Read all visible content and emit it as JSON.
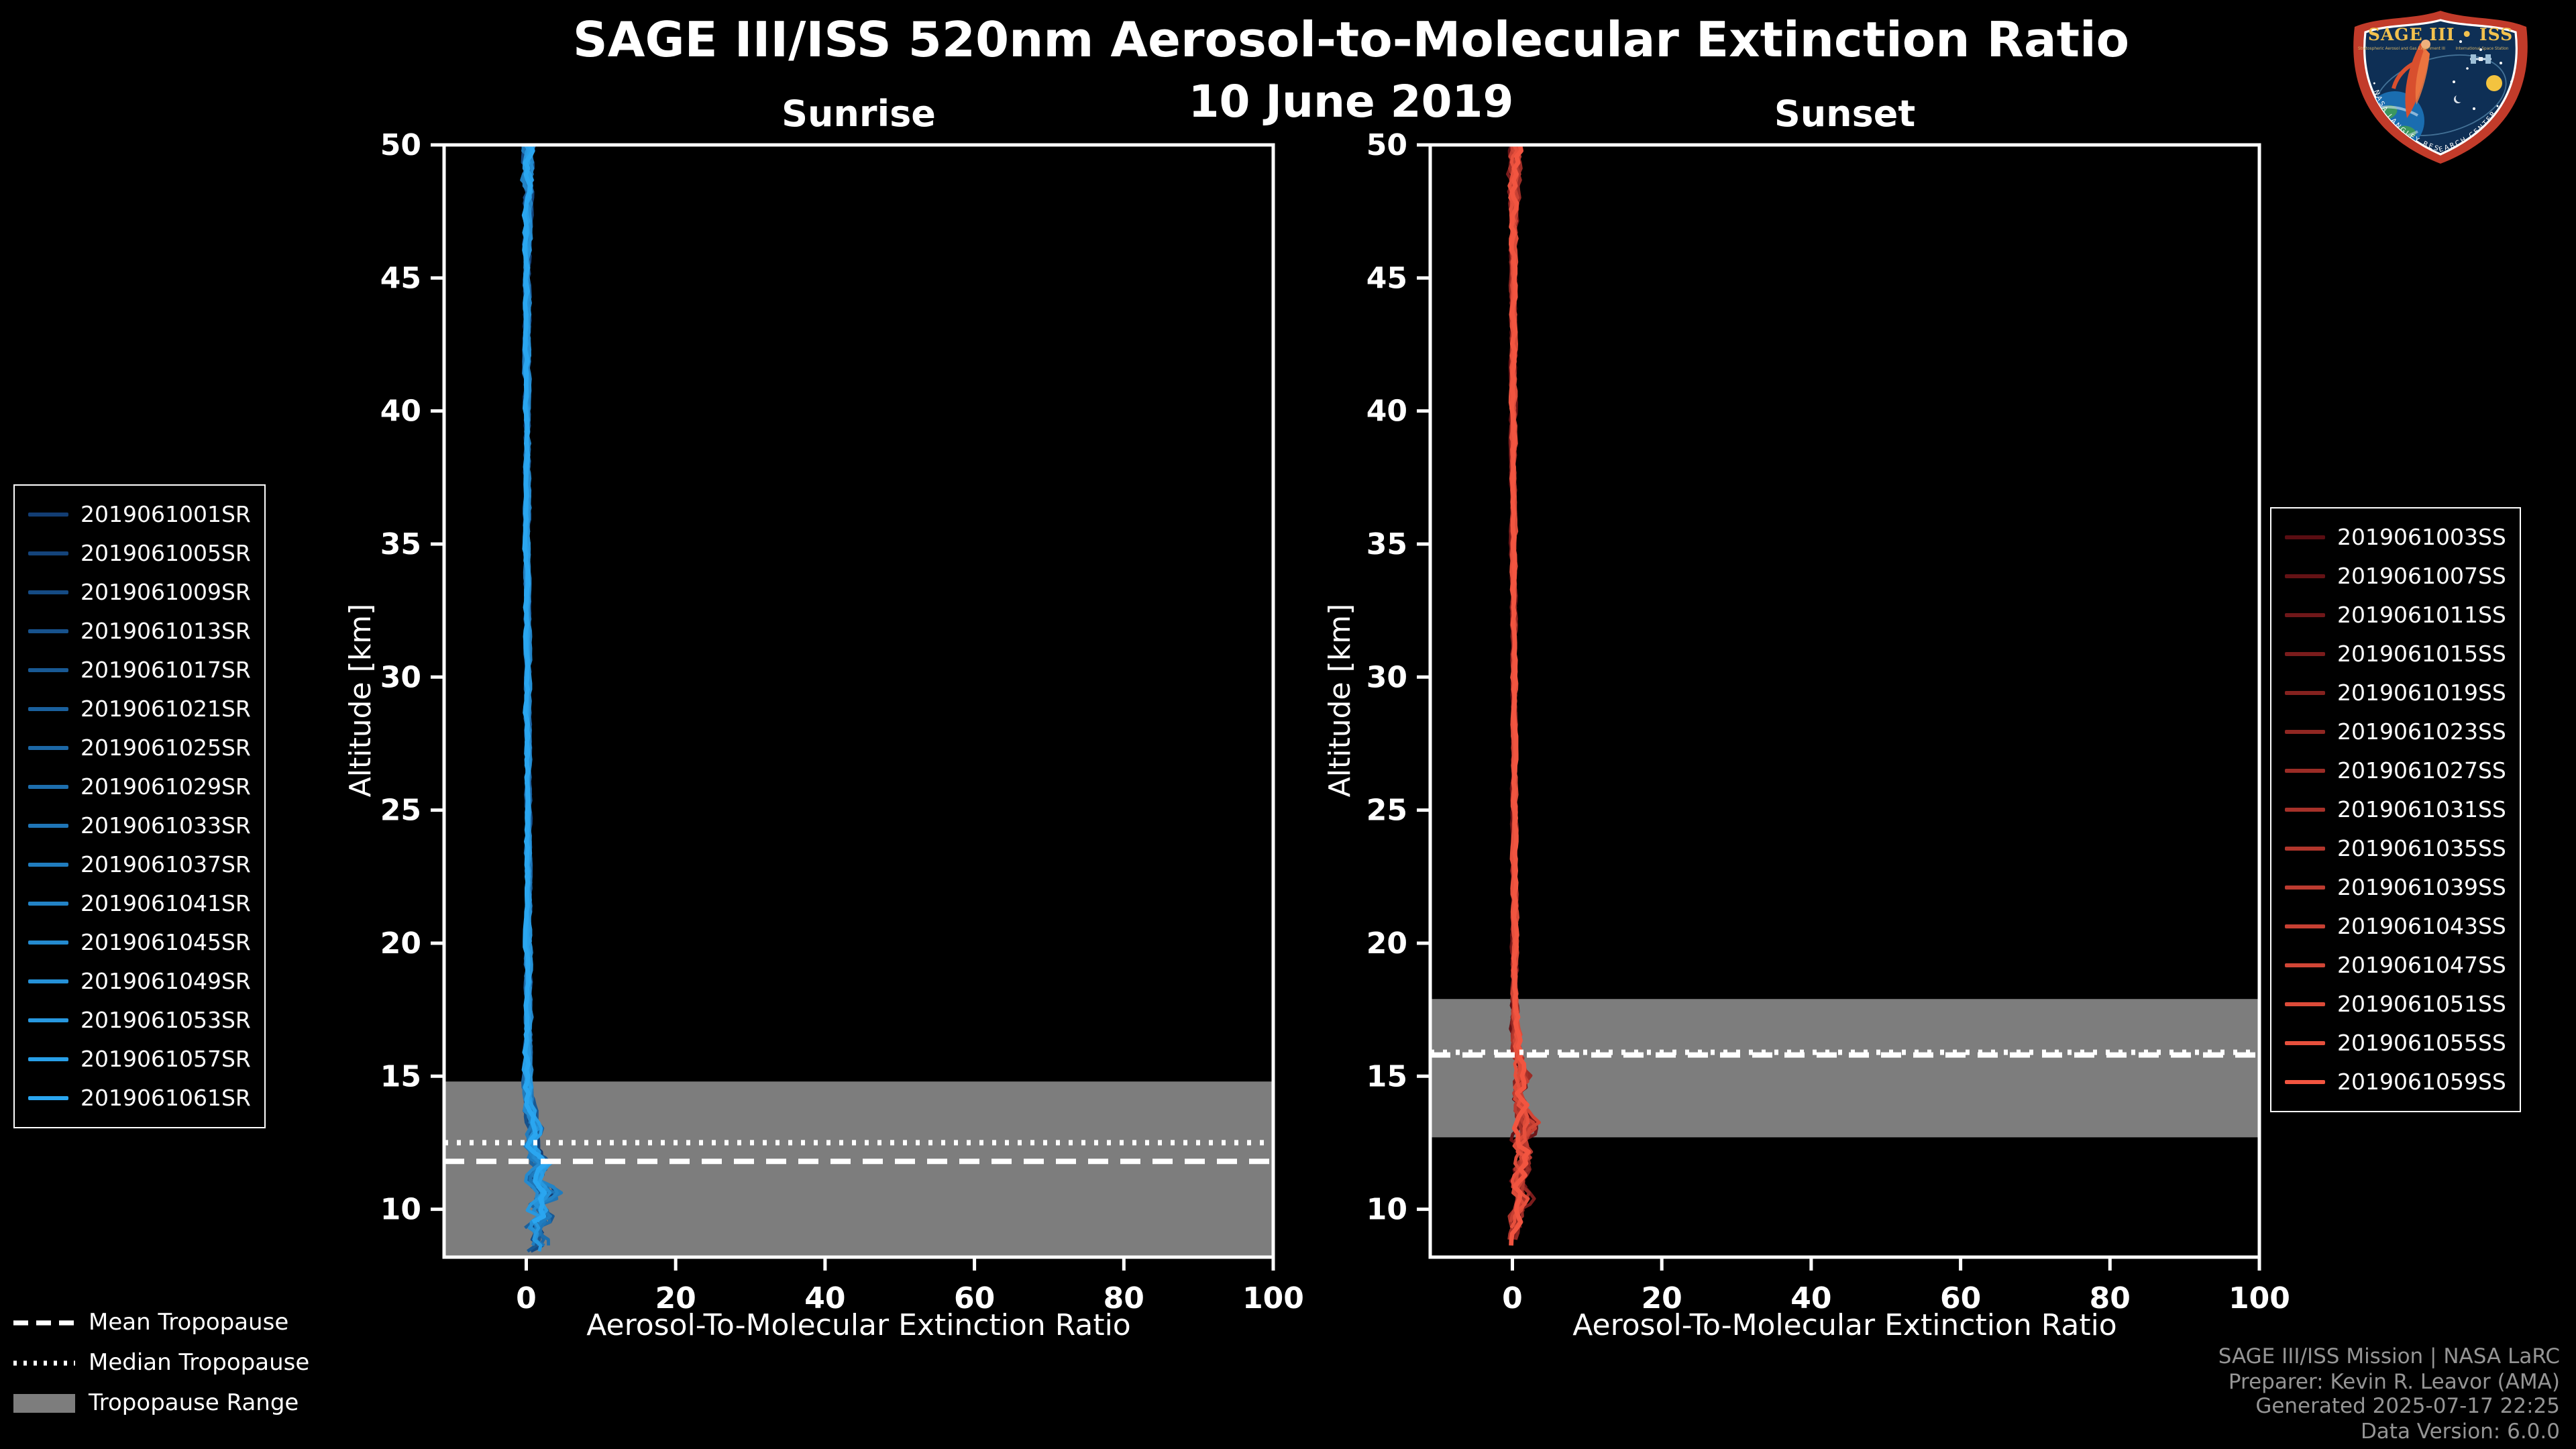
{
  "header": {
    "title": "SAGE III/ISS 520nm Aerosol-to-Molecular Extinction Ratio",
    "date": "10 June 2019"
  },
  "logo": {
    "title": "SAGE III • ISS",
    "subtitle_left": "Stratospheric Aerosol and Gas Experiment III",
    "subtitle_right": "International Space Station",
    "band_text": "• NASA LANGLEY RESEARCH CENTER •"
  },
  "colors": {
    "background": "#000000",
    "frame": "#ffffff",
    "text": "#ffffff",
    "band": "#7d7d7d",
    "tropopause_line": "#ffffff",
    "attribution_text": "#959595"
  },
  "tropopause_legend": [
    {
      "style": "dashed",
      "label": "Mean Tropopause"
    },
    {
      "style": "dotted",
      "label": "Median Tropopause"
    },
    {
      "style": "patch",
      "label": "Tropopause Range"
    }
  ],
  "attribution": [
    "SAGE III/ISS Mission | NASA LaRC",
    "Preparer: Kevin R. Leavor (AMA)",
    "Generated 2025-07-17 22:25",
    "Data Version: 6.0.0"
  ],
  "chart_data": [
    {
      "type": "line",
      "title": "Sunrise",
      "xlabel": "Aerosol-To-Molecular Extinction Ratio",
      "ylabel": "Altitude [km]",
      "xlim": [
        -11,
        100
      ],
      "ylim": [
        8.2,
        50
      ],
      "xticks": [
        0,
        20,
        40,
        60,
        80,
        100
      ],
      "yticks": [
        10,
        15,
        20,
        25,
        30,
        35,
        40,
        45,
        50
      ],
      "legend_position": "outside-left",
      "grid": false,
      "colormap": {
        "start": "#123d73",
        "end": "#2aa6f0"
      },
      "series_labels": [
        "2019061001SR",
        "2019061005SR",
        "2019061009SR",
        "2019061013SR",
        "2019061017SR",
        "2019061021SR",
        "2019061025SR",
        "2019061029SR",
        "2019061033SR",
        "2019061037SR",
        "2019061041SR",
        "2019061045SR",
        "2019061049SR",
        "2019061053SR",
        "2019061057SR",
        "2019061061SR"
      ],
      "tropopause": {
        "mean": 11.8,
        "median": 12.5,
        "range": [
          8.2,
          14.8
        ]
      },
      "profile_controls": [
        [
          50,
          0.3,
          1.0
        ],
        [
          48,
          0.2,
          0.6
        ],
        [
          45,
          0.1,
          0.35
        ],
        [
          40,
          0.1,
          0.3
        ],
        [
          35,
          0.15,
          0.25
        ],
        [
          30,
          0.2,
          0.25
        ],
        [
          25,
          0.25,
          0.25
        ],
        [
          20,
          0.3,
          0.3
        ],
        [
          17,
          0.3,
          0.35
        ],
        [
          15,
          0.2,
          0.5
        ],
        [
          13.8,
          0.4,
          0.8
        ],
        [
          13,
          1.2,
          1.1
        ],
        [
          12.4,
          0.6,
          1.0
        ],
        [
          11.7,
          2.2,
          1.8
        ],
        [
          11.1,
          0.8,
          1.4
        ],
        [
          10.6,
          3.2,
          2.2
        ],
        [
          10.1,
          1.2,
          1.6
        ],
        [
          9.7,
          2.4,
          1.9
        ],
        [
          9.2,
          0.8,
          1.4
        ],
        [
          8.7,
          1.8,
          1.8
        ],
        [
          8.2,
          0.4,
          1.0
        ]
      ],
      "end_altitude_range": [
        8.2,
        9.6
      ]
    },
    {
      "type": "line",
      "title": "Sunset",
      "xlabel": "Aerosol-To-Molecular Extinction Ratio",
      "ylabel": "Altitude [km]",
      "xlim": [
        -11,
        100
      ],
      "ylim": [
        8.2,
        50
      ],
      "xticks": [
        0,
        20,
        40,
        60,
        80,
        100
      ],
      "yticks": [
        10,
        15,
        20,
        25,
        30,
        35,
        40,
        45,
        50
      ],
      "legend_position": "outside-right",
      "grid": false,
      "colormap": {
        "start": "#5a0d12",
        "end": "#f25540"
      },
      "series_labels": [
        "2019061003SS",
        "2019061007SS",
        "2019061011SS",
        "2019061015SS",
        "2019061019SS",
        "2019061023SS",
        "2019061027SS",
        "2019061031SS",
        "2019061035SS",
        "2019061039SS",
        "2019061043SS",
        "2019061047SS",
        "2019061051SS",
        "2019061055SS",
        "2019061059SS"
      ],
      "tropopause": {
        "mean": 15.8,
        "median": 15.9,
        "range": [
          12.7,
          17.9
        ]
      },
      "profile_controls": [
        [
          50,
          0.3,
          1.0
        ],
        [
          47,
          0.2,
          0.5
        ],
        [
          45,
          0.1,
          0.35
        ],
        [
          40,
          0.1,
          0.3
        ],
        [
          35,
          0.15,
          0.25
        ],
        [
          30,
          0.2,
          0.25
        ],
        [
          25,
          0.25,
          0.25
        ],
        [
          20,
          0.3,
          0.3
        ],
        [
          17.5,
          0.3,
          0.4
        ],
        [
          16,
          0.5,
          0.7
        ],
        [
          15,
          1.6,
          1.3
        ],
        [
          14.2,
          0.7,
          1.0
        ],
        [
          13.2,
          2.2,
          1.8
        ],
        [
          12.5,
          0.9,
          1.3
        ],
        [
          11.8,
          1.8,
          1.6
        ],
        [
          11,
          0.8,
          1.2
        ],
        [
          10.4,
          1.5,
          1.4
        ],
        [
          9.8,
          0.5,
          1.0
        ],
        [
          9.2,
          0.3,
          0.8
        ],
        [
          8.6,
          0.2,
          0.7
        ]
      ],
      "end_altitude_range": [
        8.6,
        9.8
      ]
    }
  ]
}
